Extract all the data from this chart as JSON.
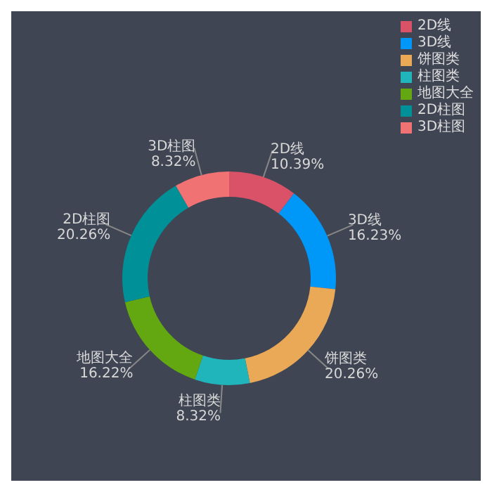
{
  "chart_data": {
    "type": "donut",
    "categories": [
      "2D线",
      "3D线",
      "饼图类",
      "柱图类",
      "地图大全",
      "2D柱图",
      "3D柱图"
    ],
    "values": [
      10.39,
      16.23,
      20.26,
      8.32,
      16.22,
      20.26,
      8.32
    ],
    "colors": [
      "#d95268",
      "#0098f8",
      "#eaa956",
      "#1fb5bb",
      "#63a811",
      "#009098",
      "#f07272"
    ],
    "value_labels": [
      "10.39%",
      "16.23%",
      "20.26%",
      "8.32%",
      "16.22%",
      "20.26%",
      "8.32%"
    ],
    "legend": "top right"
  }
}
